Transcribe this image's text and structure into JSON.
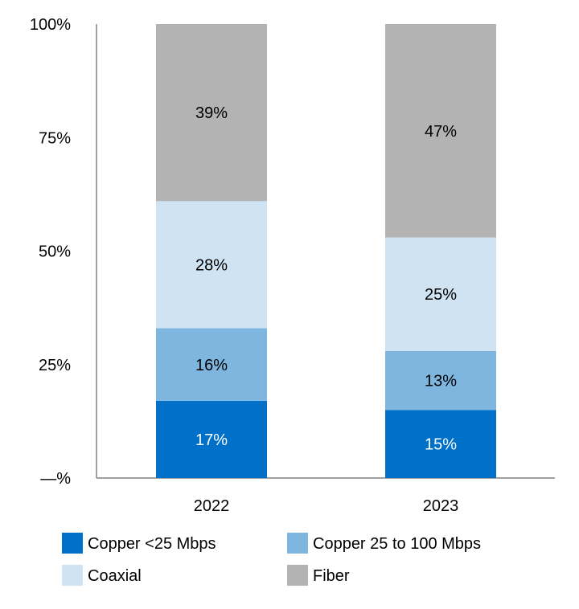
{
  "chart_data": {
    "type": "bar",
    "stacked": true,
    "categories": [
      "2022",
      "2023"
    ],
    "series": [
      {
        "name": "Copper <25 Mbps",
        "values": [
          17,
          15
        ],
        "labels": [
          "17%",
          "15%"
        ],
        "color": "#0070c8",
        "label_color": "#ffffff"
      },
      {
        "name": "Copper 25 to 100 Mbps",
        "values": [
          16,
          13
        ],
        "labels": [
          "16%",
          "13%"
        ],
        "color": "#7eb6e0",
        "label_color": "#000000"
      },
      {
        "name": "Coaxial",
        "values": [
          28,
          25
        ],
        "labels": [
          "28%",
          "25%"
        ],
        "color": "#cfe3f3",
        "label_color": "#000000"
      },
      {
        "name": "Fiber",
        "values": [
          39,
          47
        ],
        "labels": [
          "39%",
          "47%"
        ],
        "color": "#b3b3b3",
        "label_color": "#000000"
      }
    ],
    "ylim": [
      0,
      100
    ],
    "yticks": [
      0,
      25,
      50,
      75,
      100
    ],
    "ytick_labels": [
      "—%",
      "25%",
      "50%",
      "75%",
      "100%"
    ],
    "grid": false,
    "legend_position": "bottom"
  }
}
